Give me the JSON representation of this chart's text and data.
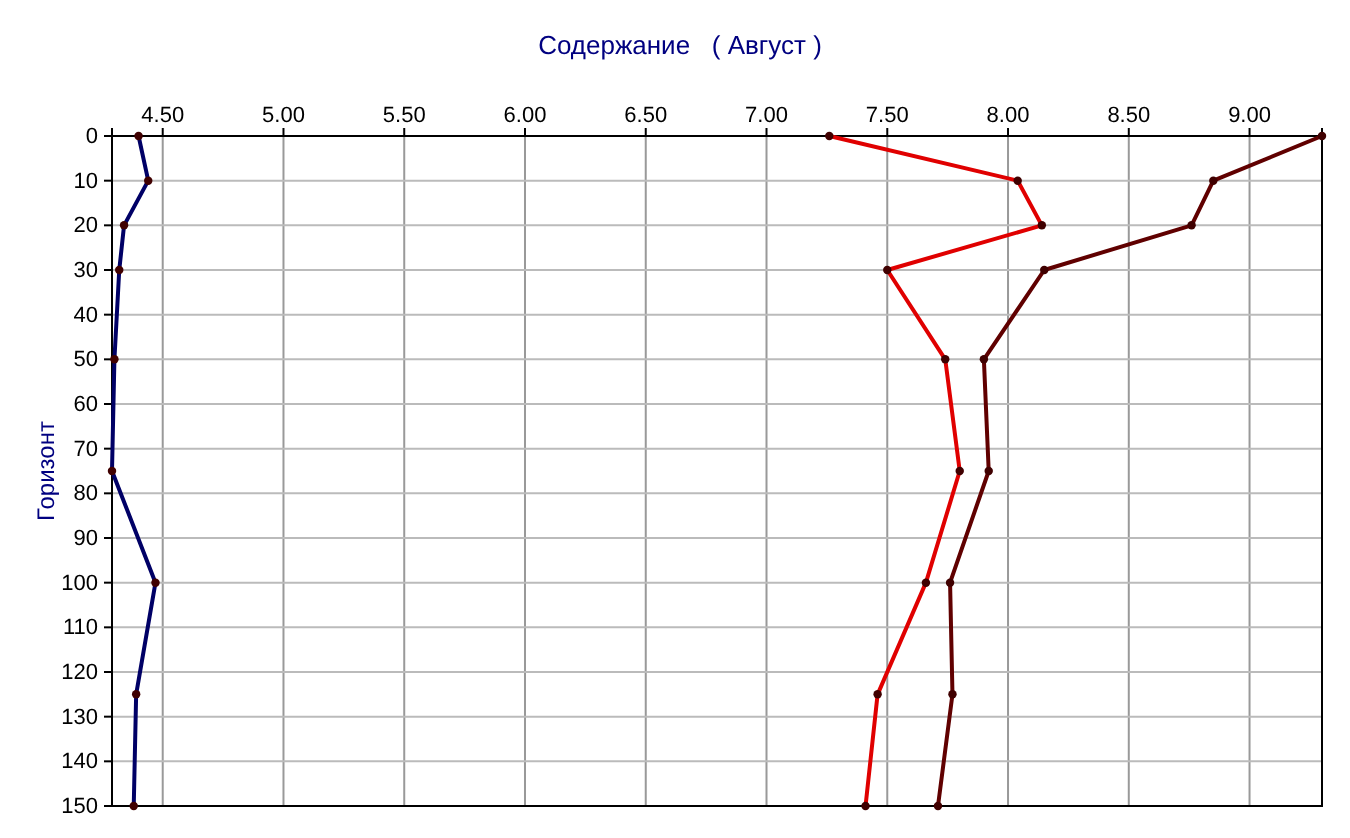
{
  "chart_data": {
    "type": "line",
    "title": "Содержание   ( Август )",
    "ylabel": "Горизонт",
    "xlim": [
      4.29,
      9.3
    ],
    "xticks": [
      {
        "value": 4.5,
        "label": "4.50"
      },
      {
        "value": 5,
        "label": "5.00"
      },
      {
        "value": 5.5,
        "label": "5.50"
      },
      {
        "value": 6,
        "label": "6.00"
      },
      {
        "value": 6.5,
        "label": "6.50"
      },
      {
        "value": 7,
        "label": "7.00"
      },
      {
        "value": 7.5,
        "label": "7.50"
      },
      {
        "value": 8,
        "label": "8.00"
      },
      {
        "value": 8.5,
        "label": "8.50"
      },
      {
        "value": 9,
        "label": "9.00"
      }
    ],
    "ylim": [
      150,
      0
    ],
    "yticks": [
      0,
      10,
      20,
      30,
      40,
      50,
      60,
      70,
      80,
      90,
      100,
      110,
      120,
      130,
      140,
      150
    ],
    "grid": true,
    "marker": "circle",
    "line_style": "solid",
    "series": [
      {
        "color": "#000066",
        "x": [
          4.4,
          4.44,
          4.34,
          4.32,
          4.3,
          4.29,
          4.47,
          4.39,
          4.38
        ],
        "values": [
          0,
          10,
          20,
          30,
          50,
          75,
          100,
          125,
          150
        ]
      },
      {
        "color": "#e00000",
        "x": [
          7.26,
          8.04,
          8.14,
          7.5,
          7.74,
          7.8,
          7.66,
          7.46,
          7.41
        ],
        "values": [
          0,
          10,
          20,
          30,
          50,
          75,
          100,
          125,
          150
        ]
      },
      {
        "color": "#600000",
        "x": [
          9.3,
          8.85,
          8.76,
          8.15,
          7.9,
          7.92,
          7.76,
          7.77,
          7.71
        ],
        "values": [
          0,
          10,
          20,
          30,
          50,
          75,
          100,
          125,
          150
        ]
      }
    ]
  }
}
